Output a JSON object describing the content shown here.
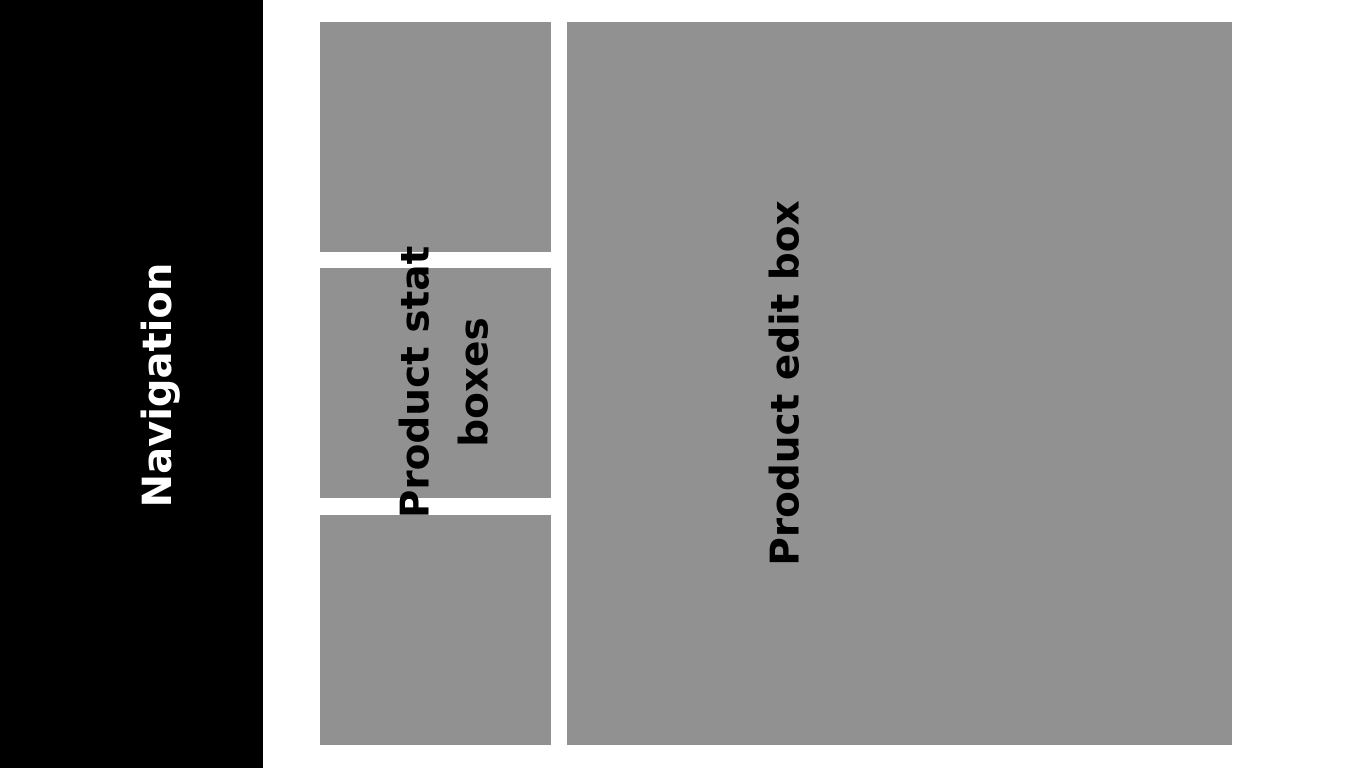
{
  "navigation": {
    "label": "Navigation"
  },
  "stat_boxes": {
    "label": "Product stat\nboxes",
    "count": 3
  },
  "edit_box": {
    "label": "Product edit box"
  },
  "colors": {
    "navigation_bg": "#000000",
    "navigation_text": "#ffffff",
    "box_fill": "#919191",
    "box_text": "#000000",
    "page_bg": "#ffffff"
  }
}
